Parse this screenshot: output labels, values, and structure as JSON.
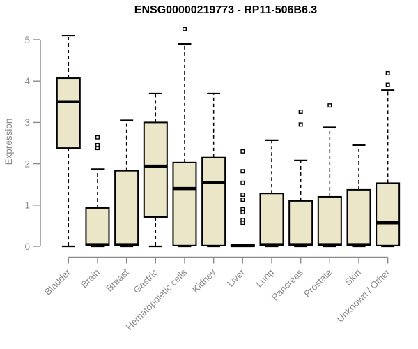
{
  "chart_data": {
    "type": "boxplot",
    "title": "ENSG00000219773 - RP11-506B6.3",
    "ylabel": "Expression",
    "xlabel": "",
    "ylim": [
      0,
      5
    ],
    "yticks": [
      0,
      1,
      2,
      3,
      4,
      5
    ],
    "grid": false,
    "legend_position": "none",
    "categories": [
      "Bladder",
      "Brain",
      "Breast",
      "Gastric",
      "Hematopoietic cells",
      "Kidney",
      "Liver",
      "Lung",
      "Pancreas",
      "Prostate",
      "Skin",
      "Unknown / Other"
    ],
    "boxes": [
      {
        "category": "Bladder",
        "whisker_low": 0,
        "q1": 2.38,
        "median": 3.5,
        "q3": 4.07,
        "whisker_high": 5.1,
        "outliers": []
      },
      {
        "category": "Brain",
        "whisker_low": 0,
        "q1": 0.02,
        "median": 0.04,
        "q3": 0.93,
        "whisker_high": 1.87,
        "outliers": [
          2.64,
          2.45,
          2.38
        ]
      },
      {
        "category": "Breast",
        "whisker_low": 0,
        "q1": 0.02,
        "median": 0.04,
        "q3": 1.83,
        "whisker_high": 3.05,
        "outliers": []
      },
      {
        "category": "Gastric",
        "whisker_low": 0,
        "q1": 0.71,
        "median": 1.94,
        "q3": 3.0,
        "whisker_high": 3.7,
        "outliers": []
      },
      {
        "category": "Hematopoietic cells",
        "whisker_low": 0,
        "q1": 0.02,
        "median": 1.4,
        "q3": 2.03,
        "whisker_high": 4.9,
        "outliers": [
          5.26
        ]
      },
      {
        "category": "Kidney",
        "whisker_low": 0,
        "q1": 0.02,
        "median": 1.55,
        "q3": 2.15,
        "whisker_high": 3.7,
        "outliers": []
      },
      {
        "category": "Liver",
        "whisker_low": 0,
        "q1": 0,
        "median": 0.02,
        "q3": 0.04,
        "whisker_high": 0.04,
        "outliers": [
          2.3,
          1.82,
          1.54,
          1.25,
          1.13,
          0.9,
          0.83,
          0.64,
          0.57
        ]
      },
      {
        "category": "Lung",
        "whisker_low": 0,
        "q1": 0.02,
        "median": 0.04,
        "q3": 1.28,
        "whisker_high": 2.57,
        "outliers": []
      },
      {
        "category": "Pancreas",
        "whisker_low": 0,
        "q1": 0.02,
        "median": 0.04,
        "q3": 1.1,
        "whisker_high": 2.08,
        "outliers": [
          3.26,
          2.95
        ]
      },
      {
        "category": "Prostate",
        "whisker_low": 0,
        "q1": 0.02,
        "median": 0.04,
        "q3": 1.2,
        "whisker_high": 2.88,
        "outliers": [
          3.41
        ]
      },
      {
        "category": "Skin",
        "whisker_low": 0,
        "q1": 0.02,
        "median": 0.04,
        "q3": 1.37,
        "whisker_high": 2.45,
        "outliers": []
      },
      {
        "category": "Unknown / Other",
        "whisker_low": 0,
        "q1": 0.02,
        "median": 0.57,
        "q3": 1.53,
        "whisker_high": 3.78,
        "outliers": [
          4.19,
          3.91
        ]
      }
    ],
    "colors": {
      "box_fill": "#ECE6C8",
      "box_border": "#000000",
      "median": "#000000",
      "whisker": "#000000",
      "outlier_stroke": "#000000",
      "outlier_fill": "#ffffff",
      "axis": "#8a8a8a",
      "tick_label": "#8a8a8a",
      "title": "#000000",
      "background": "#ffffff"
    }
  }
}
